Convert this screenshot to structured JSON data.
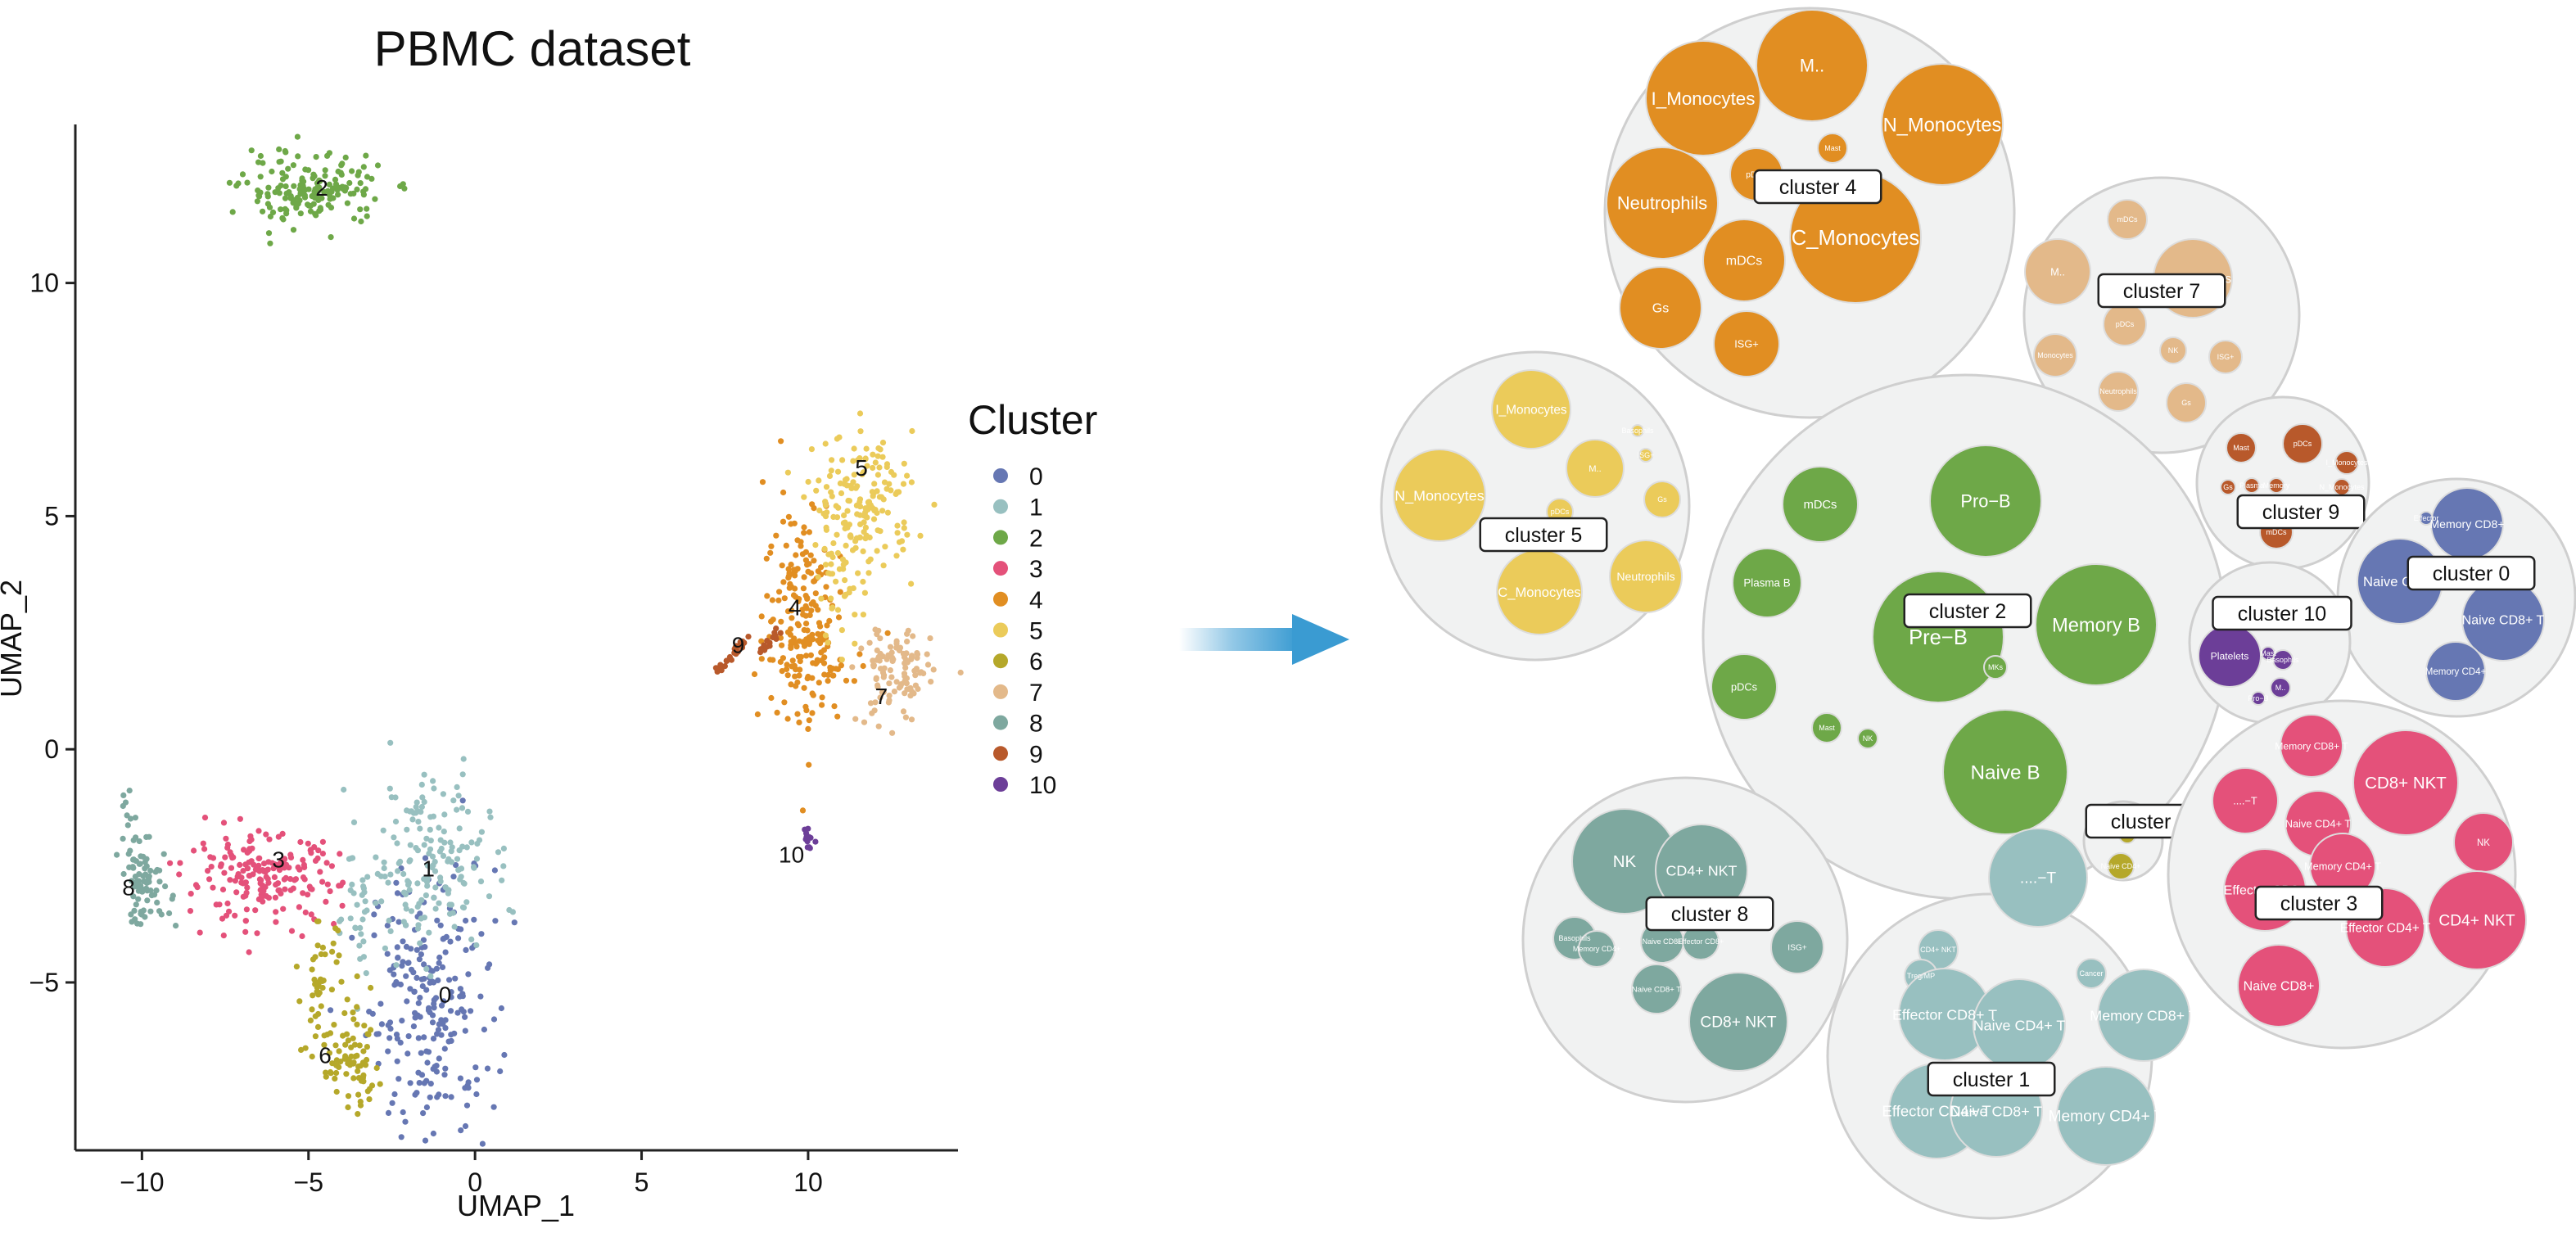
{
  "colors": {
    "0": "#6677b3",
    "1": "#98c0c0",
    "2": "#6ea848",
    "3": "#e4517a",
    "4": "#e18e22",
    "5": "#ebcb5a",
    "6": "#b5a82a",
    "7": "#e3b98a",
    "8": "#7ea89f",
    "9": "#b8592b",
    "10": "#6c3e98",
    "bubble_outer_fill": "#f1f2f2",
    "bubble_outer_stroke": "#cfcfcf",
    "arrow": "#3a9bd2"
  },
  "chart_data": [
    {
      "type": "scatter",
      "title": "PBMC dataset",
      "xlabel": "UMAP_1",
      "ylabel": "UMAP_2",
      "xlim": [
        -12,
        14.5
      ],
      "ylim": [
        -8.6,
        13.4
      ],
      "xticks": [
        -10,
        -5,
        0,
        5,
        10
      ],
      "yticks": [
        -5,
        0,
        5,
        10
      ],
      "grid": false,
      "legend": {
        "title": "Cluster",
        "position": "right",
        "entries": [
          "0",
          "1",
          "2",
          "3",
          "4",
          "5",
          "6",
          "7",
          "8",
          "9",
          "10"
        ]
      },
      "cluster_labels": [
        {
          "label": "0",
          "x": -0.9,
          "y": -5.3
        },
        {
          "label": "1",
          "x": -1.4,
          "y": -2.6
        },
        {
          "label": "2",
          "x": -4.6,
          "y": 12.0
        },
        {
          "label": "3",
          "x": -5.9,
          "y": -2.4
        },
        {
          "label": "4",
          "x": 9.6,
          "y": 3.0
        },
        {
          "label": "5",
          "x": 11.6,
          "y": 6.0
        },
        {
          "label": "6",
          "x": -4.5,
          "y": -6.6
        },
        {
          "label": "7",
          "x": 12.2,
          "y": 1.1
        },
        {
          "label": "8",
          "x": -10.4,
          "y": -3.0
        },
        {
          "label": "9",
          "x": 7.9,
          "y": 2.2
        },
        {
          "label": "10",
          "x": 9.5,
          "y": -2.3
        }
      ],
      "clusters": [
        {
          "name": "0",
          "regions": [
            {
              "cx": -1.3,
              "cy": -5.4,
              "sx": 1.1,
              "sy": 1.7,
              "n": 230
            }
          ]
        },
        {
          "name": "1",
          "regions": [
            {
              "cx": -1.4,
              "cy": -2.4,
              "sx": 1.1,
              "sy": 1.1,
              "n": 170
            },
            {
              "cx": -3.6,
              "cy": -3.6,
              "sx": 0.4,
              "sy": 0.9,
              "n": 30
            }
          ]
        },
        {
          "name": "2",
          "regions": [
            {
              "cx": -4.9,
              "cy": 12.0,
              "sx": 1.25,
              "sy": 0.45,
              "n": 170
            }
          ]
        },
        {
          "name": "3",
          "regions": [
            {
              "cx": -6.4,
              "cy": -2.8,
              "sx": 1.35,
              "sy": 0.55,
              "n": 190
            }
          ]
        },
        {
          "name": "4",
          "regions": [
            {
              "cx": 9.8,
              "cy": 3.0,
              "sx": 0.65,
              "sy": 1.5,
              "n": 180
            },
            {
              "cx": 10.7,
              "cy": 1.9,
              "sx": 0.8,
              "sy": 0.4,
              "n": 40
            }
          ]
        },
        {
          "name": "5",
          "regions": [
            {
              "cx": 11.7,
              "cy": 5.3,
              "sx": 0.9,
              "sy": 0.85,
              "n": 150
            },
            {
              "cx": 11.0,
              "cy": 3.8,
              "sx": 0.5,
              "sy": 0.9,
              "n": 50
            }
          ]
        },
        {
          "name": "6",
          "regions": [
            {
              "cx": -4.6,
              "cy": -5.1,
              "sx": 0.35,
              "sy": 0.8,
              "n": 45
            },
            {
              "cx": -3.7,
              "cy": -6.8,
              "sx": 0.55,
              "sy": 0.6,
              "n": 75
            }
          ]
        },
        {
          "name": "7",
          "regions": [
            {
              "cx": 12.6,
              "cy": 1.6,
              "sx": 0.65,
              "sy": 0.65,
              "n": 110
            }
          ]
        },
        {
          "name": "8",
          "regions": [
            {
              "cx": -9.9,
              "cy": -2.9,
              "sx": 0.45,
              "sy": 0.5,
              "n": 80
            },
            {
              "cx": -10.4,
              "cy": -1.6,
              "sx": 0.12,
              "sy": 0.5,
              "n": 12
            }
          ]
        },
        {
          "name": "9",
          "regions": [
            {
              "line": [
                [
                  7.2,
                  1.6
                ],
                [
                  8.2,
                  2.4
                ]
              ],
              "n": 28
            },
            {
              "line": [
                [
                  8.5,
                  2.0
                ],
                [
                  9.2,
                  2.6
                ]
              ],
              "n": 14
            }
          ]
        },
        {
          "name": "10",
          "regions": [
            {
              "cx": 10.0,
              "cy": -1.95,
              "sx": 0.1,
              "sy": 0.15,
              "n": 12
            }
          ]
        }
      ]
    },
    {
      "type": "packed-bubble",
      "groups": [
        {
          "cluster": "4",
          "label": "cluster 4",
          "items": [
            {
              "label": "M..",
              "size": 68
            },
            {
              "label": "I_Monocytes",
              "size": 70
            },
            {
              "label": "N_Monocytes",
              "size": 74
            },
            {
              "label": "Mast",
              "size": 18
            },
            {
              "label": "pDCs",
              "size": 32
            },
            {
              "label": "Neutrophils",
              "size": 68
            },
            {
              "label": "C_Monocytes",
              "size": 80
            },
            {
              "label": "mDCs",
              "size": 50
            },
            {
              "label": "Gs",
              "size": 50
            },
            {
              "label": "ISG+",
              "size": 40
            }
          ]
        },
        {
          "cluster": "7",
          "label": "cluster 7",
          "items": [
            {
              "label": "mDCs",
              "size": 24
            },
            {
              "label": "M..",
              "size": 40
            },
            {
              "label": "N_Monocytes",
              "size": 48
            },
            {
              "label": "pDCs",
              "size": 26
            },
            {
              "label": "Monocytes",
              "size": 26
            },
            {
              "label": "NK",
              "size": 16
            },
            {
              "label": "ISG+",
              "size": 20
            },
            {
              "label": "Neutrophils",
              "size": 24
            },
            {
              "label": "Gs",
              "size": 24
            }
          ]
        },
        {
          "cluster": "5",
          "label": "cluster 5",
          "items": [
            {
              "label": "I_Monocytes",
              "size": 48
            },
            {
              "label": "N_Monocytes",
              "size": 56
            },
            {
              "label": "M..",
              "size": 35
            },
            {
              "label": "Gs",
              "size": 22
            },
            {
              "label": "Neutrophils",
              "size": 44
            },
            {
              "label": "C_Monocytes",
              "size": 52
            },
            {
              "label": "pDCs",
              "size": 16
            },
            {
              "label": "Basophils",
              "size": 7
            },
            {
              "label": "ISG+",
              "size": 8
            }
          ]
        },
        {
          "cluster": "2",
          "label": "cluster 2",
          "items": [
            {
              "label": "mDCs",
              "size": 46
            },
            {
              "label": "Pro−B",
              "size": 68
            },
            {
              "label": "Plasma B",
              "size": 42
            },
            {
              "label": "Pre−B",
              "size": 80
            },
            {
              "label": "Memory B",
              "size": 74
            },
            {
              "label": "MKs",
              "size": 14
            },
            {
              "label": "pDCs",
              "size": 40
            },
            {
              "label": "Mast",
              "size": 18
            },
            {
              "label": "NK",
              "size": 12
            },
            {
              "label": "Naive B",
              "size": 76
            }
          ]
        },
        {
          "cluster": "9",
          "label": "cluster 9",
          "items": [
            {
              "label": "Mast",
              "size": 18
            },
            {
              "label": "pDCs",
              "size": 24
            },
            {
              "label": "I_Monocytes",
              "size": 14
            },
            {
              "label": "Gs",
              "size": 9
            },
            {
              "label": "Plasma",
              "size": 9
            },
            {
              "label": "Memory",
              "size": 9
            },
            {
              "label": "N_Monocytes",
              "size": 10
            },
            {
              "label": "mDCs",
              "size": 20
            }
          ]
        },
        {
          "cluster": "0",
          "label": "cluster 0",
          "items": [
            {
              "label": "Memory CD8+",
              "size": 44
            },
            {
              "label": "Naive CD4+",
              "size": 52
            },
            {
              "label": "Naive CD8+ T",
              "size": 50
            },
            {
              "label": "Memory CD4+",
              "size": 36
            },
            {
              "label": "Effector",
              "size": 8
            }
          ]
        },
        {
          "cluster": "10",
          "label": "cluster 10",
          "items": [
            {
              "label": "Platelets",
              "size": 38
            },
            {
              "label": "Basophils",
              "size": 12
            },
            {
              "label": "M..",
              "size": 12
            },
            {
              "label": "Pro−B",
              "size": 8
            },
            {
              "label": "Mast",
              "size": 8
            }
          ]
        },
        {
          "cluster": "6",
          "label": "cluster 6",
          "items": [
            {
              "label": "Naive CD4+",
              "size": 16
            },
            {
              "label": "Memory",
              "size": 10
            }
          ]
        },
        {
          "cluster": "8",
          "label": "cluster 8",
          "items": [
            {
              "label": "NK",
              "size": 64
            },
            {
              "label": "CD4+ NKT",
              "size": 56
            },
            {
              "label": "Basophils",
              "size": 26
            },
            {
              "label": "Memory CD4+",
              "size": 22
            },
            {
              "label": "Naive CD8+",
              "size": 26
            },
            {
              "label": "Effector CD8+",
              "size": 22
            },
            {
              "label": "ISG+",
              "size": 32
            },
            {
              "label": "Naive CD8+ T",
              "size": 30
            },
            {
              "label": "CD8+ NKT",
              "size": 60
            }
          ]
        },
        {
          "cluster": "1",
          "label": "cluster 1",
          "items": [
            {
              "label": "....−T",
              "size": 60
            },
            {
              "label": "CD4+ NKT",
              "size": 24
            },
            {
              "label": "Treg/MP",
              "size": 20
            },
            {
              "label": "Cancer",
              "size": 18
            },
            {
              "label": "Effector CD8+ T",
              "size": 56
            },
            {
              "label": "Naive CD4+ T",
              "size": 56
            },
            {
              "label": "Memory CD8+ T",
              "size": 56
            },
            {
              "label": "Effector CD4+ T",
              "size": 58
            },
            {
              "label": "Naive CD8+ T",
              "size": 56
            },
            {
              "label": "Memory CD4+ T",
              "size": 60
            }
          ]
        },
        {
          "cluster": "3",
          "label": "cluster 3",
          "items": [
            {
              "label": "Memory CD8+ T",
              "size": 38
            },
            {
              "label": "CD8+ NKT",
              "size": 64
            },
            {
              "label": "....−T",
              "size": 40
            },
            {
              "label": "Naive CD4+ T",
              "size": 40
            },
            {
              "label": "Memory CD4+ T",
              "size": 40
            },
            {
              "label": "NK",
              "size": 36
            },
            {
              "label": "Effector CD8+",
              "size": 50
            },
            {
              "label": "Effector CD4+ T",
              "size": 48
            },
            {
              "label": "CD4+ NKT",
              "size": 60
            },
            {
              "label": "Naive CD8+",
              "size": 50
            }
          ]
        }
      ]
    }
  ]
}
